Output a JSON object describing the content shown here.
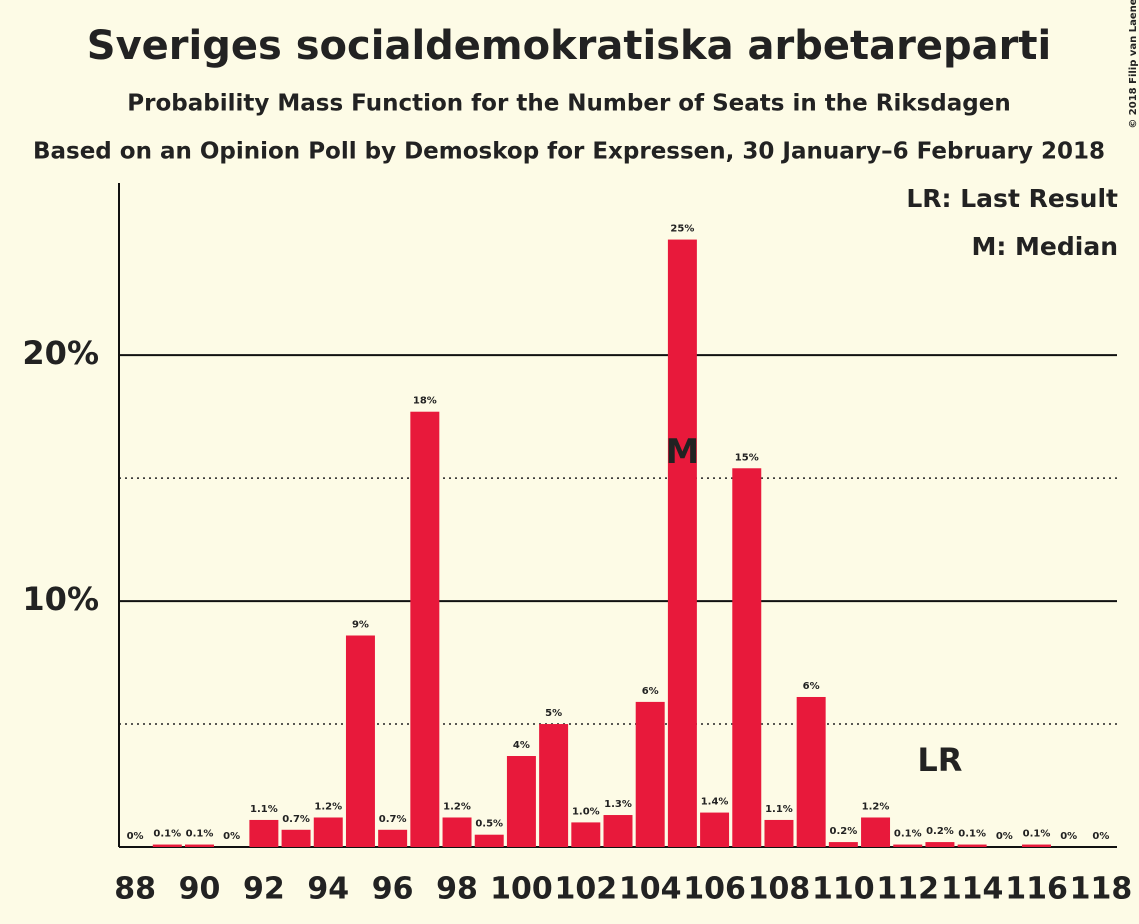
{
  "chart_data": {
    "type": "bar",
    "title": "Sveriges socialdemokratiska arbetareparti",
    "subtitle": "Probability Mass Function for the Number of Seats in the Riksdagen",
    "caption": "Based on an Opinion Poll by Demoskop for Expressen, 30 January–6 February 2018",
    "copyright": "© 2018 Filip van Laenen",
    "legend": [
      "LR: Last Result",
      "M: Median"
    ],
    "categories": [
      "88",
      null,
      "90",
      null,
      "92",
      null,
      "94",
      null,
      "96",
      null,
      "98",
      null,
      "100",
      null,
      "102",
      null,
      "104",
      null,
      "106",
      null,
      "108",
      null,
      "110",
      null,
      "112",
      null,
      "114",
      null,
      "116",
      null,
      "118"
    ],
    "values": [
      0,
      0.1,
      0.1,
      0,
      1.1,
      0.7,
      1.2,
      8.6,
      0.7,
      17.7,
      1.2,
      0.5,
      3.7,
      5.0,
      1.0,
      1.3,
      5.9,
      24.7,
      1.4,
      15.4,
      1.1,
      6.1,
      0.2,
      1.2,
      0.1,
      0.2,
      0.1,
      0,
      0.1,
      0,
      0
    ],
    "value_labels": [
      "0%",
      "0.1%",
      "0.1%",
      "0%",
      "1.1%",
      "0.7%",
      "1.2%",
      "9%",
      "0.7%",
      "18%",
      "1.2%",
      "0.5%",
      "4%",
      "5%",
      "1.0%",
      "1.3%",
      "6%",
      "25%",
      "1.4%",
      "15%",
      "1.1%",
      "6%",
      "0.2%",
      "1.2%",
      "0.1%",
      "0.2%",
      "0.1%",
      "0%",
      "0.1%",
      "0%",
      "0%"
    ],
    "color": "#e8193b",
    "ylim": [
      0,
      27
    ],
    "yticks": [
      {
        "value": 10,
        "label": "10%"
      },
      {
        "value": 20,
        "label": "20%"
      }
    ],
    "minor_yticks": [
      5,
      15
    ],
    "grid": true,
    "annotations": [
      {
        "text": "M",
        "index": 17
      },
      {
        "text": "LR",
        "index": 25
      }
    ]
  }
}
